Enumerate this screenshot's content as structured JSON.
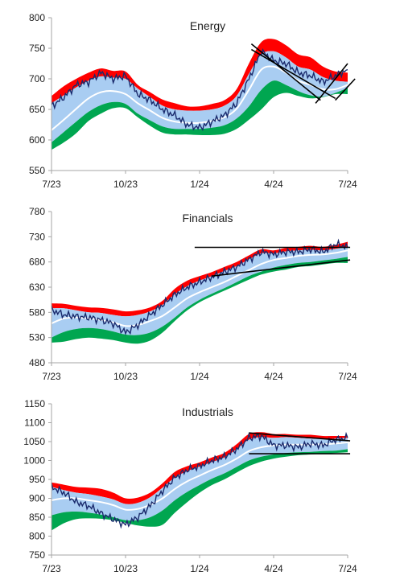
{
  "chart_data": [
    {
      "type": "area",
      "title": "Energy",
      "ylim": [
        550,
        800
      ],
      "yticks": [
        550,
        600,
        650,
        700,
        750,
        800
      ],
      "xlim": [
        0,
        12
      ],
      "xticks": [
        {
          "label": "7/23",
          "x": 0
        },
        {
          "label": "10/23",
          "x": 3
        },
        {
          "label": "1/24",
          "x": 6
        },
        {
          "label": "4/24",
          "x": 9
        },
        {
          "label": "7/24",
          "x": 12
        }
      ],
      "grid": false,
      "x": [
        0,
        0.5,
        1,
        1.5,
        2,
        2.5,
        3,
        3.5,
        4,
        4.5,
        5,
        5.5,
        6,
        6.5,
        7,
        7.5,
        8,
        8.5,
        9,
        9.5,
        10,
        10.5,
        11,
        11.5,
        12
      ],
      "price": [
        655,
        670,
        690,
        695,
        710,
        700,
        705,
        675,
        665,
        650,
        640,
        625,
        620,
        630,
        640,
        660,
        700,
        745,
        730,
        725,
        710,
        705,
        695,
        705,
        715
      ],
      "upper": [
        672,
        688,
        700,
        710,
        717,
        713,
        712,
        690,
        678,
        666,
        660,
        655,
        655,
        659,
        665,
        683,
        725,
        760,
        765,
        755,
        740,
        735,
        720,
        712,
        710
      ],
      "upper_inner": [
        660,
        673,
        686,
        697,
        704,
        702,
        700,
        684,
        670,
        656,
        650,
        648,
        648,
        650,
        656,
        672,
        708,
        740,
        745,
        735,
        720,
        715,
        703,
        697,
        695
      ],
      "mid": [
        616,
        633,
        651,
        668,
        678,
        680,
        675,
        660,
        648,
        636,
        630,
        628,
        628,
        631,
        637,
        651,
        682,
        715,
        720,
        710,
        697,
        690,
        683,
        683,
        690
      ],
      "lower_inner": [
        596,
        613,
        630,
        646,
        657,
        662,
        659,
        643,
        632,
        622,
        618,
        618,
        618,
        620,
        624,
        635,
        655,
        682,
        697,
        690,
        680,
        673,
        671,
        677,
        685
      ],
      "lower": [
        584,
        596,
        611,
        631,
        643,
        652,
        652,
        637,
        623,
        612,
        609,
        609,
        608,
        608,
        610,
        618,
        633,
        650,
        670,
        677,
        672,
        668,
        670,
        675,
        675
      ],
      "trendlines": [
        {
          "x1": 8.1,
          "y1": 757,
          "x2": 10.9,
          "y2": 665
        },
        {
          "x1": 8.1,
          "y1": 748,
          "x2": 11.5,
          "y2": 668
        },
        {
          "x1": 10.7,
          "y1": 660,
          "x2": 12.0,
          "y2": 725
        },
        {
          "x1": 11.5,
          "y1": 665,
          "x2": 12.3,
          "y2": 700
        }
      ]
    },
    {
      "type": "area",
      "title": "Financials",
      "ylim": [
        480,
        780
      ],
      "yticks": [
        480,
        530,
        580,
        630,
        680,
        730,
        780
      ],
      "xlim": [
        0,
        12
      ],
      "xticks": [
        {
          "label": "7/23",
          "x": 0
        },
        {
          "label": "10/23",
          "x": 3
        },
        {
          "label": "1/24",
          "x": 6
        },
        {
          "label": "4/24",
          "x": 9
        },
        {
          "label": "7/24",
          "x": 12
        }
      ],
      "grid": false,
      "x": [
        0,
        0.5,
        1,
        1.5,
        2,
        2.5,
        3,
        3.5,
        4,
        4.5,
        5,
        5.5,
        6,
        6.5,
        7,
        7.5,
        8,
        8.5,
        9,
        9.5,
        10,
        10.5,
        11,
        11.5,
        12
      ],
      "price": [
        585,
        575,
        572,
        570,
        565,
        558,
        540,
        555,
        575,
        595,
        615,
        630,
        640,
        650,
        660,
        670,
        685,
        700,
        695,
        700,
        700,
        705,
        700,
        715,
        710
      ],
      "upper": [
        598,
        597,
        593,
        590,
        589,
        586,
        582,
        584,
        590,
        603,
        627,
        643,
        652,
        660,
        670,
        680,
        693,
        705,
        703,
        708,
        710,
        712,
        710,
        714,
        720
      ],
      "upper_inner": [
        588,
        588,
        584,
        580,
        579,
        575,
        572,
        575,
        582,
        595,
        616,
        632,
        643,
        652,
        662,
        672,
        685,
        697,
        697,
        701,
        703,
        704,
        703,
        706,
        710
      ],
      "mid": [
        558,
        568,
        570,
        568,
        565,
        560,
        553,
        555,
        563,
        573,
        590,
        608,
        620,
        630,
        640,
        652,
        664,
        676,
        684,
        688,
        692,
        694,
        695,
        698,
        703
      ],
      "lower_inner": [
        530,
        541,
        547,
        549,
        547,
        542,
        536,
        535,
        540,
        552,
        570,
        590,
        605,
        617,
        628,
        640,
        652,
        661,
        669,
        674,
        678,
        680,
        683,
        686,
        690
      ],
      "lower": [
        520,
        522,
        527,
        530,
        528,
        525,
        520,
        518,
        524,
        540,
        563,
        584,
        600,
        612,
        623,
        634,
        645,
        655,
        661,
        665,
        670,
        672,
        675,
        678,
        678
      ],
      "trendlines": [
        {
          "x1": 5.8,
          "y1": 709,
          "x2": 12.1,
          "y2": 709
        },
        {
          "x1": 6.5,
          "y1": 652,
          "x2": 12.1,
          "y2": 684
        }
      ]
    },
    {
      "type": "area",
      "title": "Industrials",
      "ylim": [
        750,
        1150
      ],
      "yticks": [
        750,
        800,
        850,
        900,
        950,
        1000,
        1050,
        1100,
        1150
      ],
      "xlim": [
        0,
        12
      ],
      "xticks": [
        {
          "label": "7/23",
          "x": 0
        },
        {
          "label": "10/23",
          "x": 3
        },
        {
          "label": "1/24",
          "x": 6
        },
        {
          "label": "4/24",
          "x": 9
        },
        {
          "label": "7/24",
          "x": 12
        }
      ],
      "grid": false,
      "x": [
        0,
        0.5,
        1,
        1.5,
        2,
        2.5,
        3,
        3.5,
        4,
        4.5,
        5,
        5.5,
        6,
        6.5,
        7,
        7.5,
        8,
        8.5,
        9,
        9.5,
        10,
        10.5,
        11,
        11.5,
        12
      ],
      "price": [
        930,
        915,
        890,
        880,
        860,
        845,
        830,
        850,
        880,
        920,
        955,
        975,
        985,
        1000,
        1010,
        1030,
        1060,
        1065,
        1040,
        1040,
        1035,
        1045,
        1040,
        1055,
        1060
      ],
      "upper": [
        942,
        936,
        930,
        928,
        925,
        915,
        900,
        902,
        915,
        940,
        970,
        985,
        995,
        1008,
        1020,
        1043,
        1070,
        1075,
        1070,
        1070,
        1068,
        1068,
        1065,
        1065,
        1065
      ],
      "upper_inner": [
        930,
        922,
        915,
        911,
        905,
        897,
        885,
        888,
        903,
        928,
        955,
        972,
        984,
        996,
        1008,
        1030,
        1055,
        1062,
        1060,
        1062,
        1060,
        1058,
        1057,
        1058,
        1060
      ],
      "mid": [
        895,
        900,
        900,
        895,
        890,
        882,
        870,
        872,
        883,
        900,
        925,
        945,
        960,
        975,
        988,
        1005,
        1025,
        1035,
        1040,
        1042,
        1042,
        1042,
        1043,
        1045,
        1048
      ],
      "lower_inner": [
        855,
        863,
        865,
        862,
        857,
        850,
        842,
        842,
        850,
        868,
        895,
        917,
        935,
        952,
        966,
        983,
        1000,
        1010,
        1016,
        1020,
        1022,
        1023,
        1025,
        1026,
        1030
      ],
      "lower": [
        815,
        834,
        845,
        847,
        846,
        842,
        835,
        828,
        825,
        830,
        862,
        890,
        915,
        935,
        950,
        968,
        985,
        997,
        1005,
        1010,
        1014,
        1016,
        1018,
        1020,
        1022
      ],
      "trendlines": [
        {
          "x1": 8.0,
          "y1": 1073,
          "x2": 12.1,
          "y2": 1052
        },
        {
          "x1": 8.0,
          "y1": 1018,
          "x2": 12.1,
          "y2": 1018
        }
      ]
    }
  ],
  "colors": {
    "red_band": "#ff0000",
    "blue_band": "#a9cdf2",
    "green_band": "#00a650",
    "mid_line": "#ffffff",
    "price_line": "#1a2a6c",
    "trendline": "#000000",
    "axis": "#a6a6a6"
  }
}
